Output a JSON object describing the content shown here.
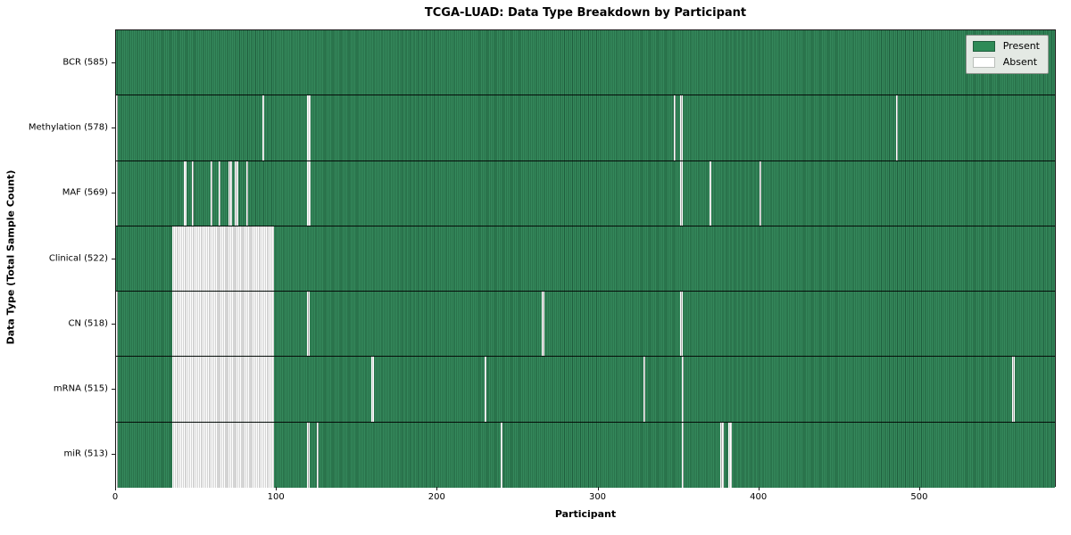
{
  "title": "TCGA-LUAD: Data Type Breakdown by Participant",
  "chart_data": {
    "type": "heatmap",
    "title": "TCGA-LUAD: Data Type Breakdown by Participant",
    "xlabel": "Participant",
    "ylabel": "Data Type (Total Sample Count)",
    "x_range": [
      0,
      585
    ],
    "x_ticks": [
      0,
      100,
      200,
      300,
      400,
      500
    ],
    "grid": false,
    "legend_position": "upper right",
    "legend_entries": [
      "Present",
      "Absent"
    ],
    "colors": {
      "present_fill": "#35895c",
      "present_edge": "#1f5e3d",
      "absent_fill": "#ffffff",
      "absent_edge": "#a8a8a8",
      "legend_present_swatch": "#2e8b57",
      "row_divider": "#000000"
    },
    "rows": [
      {
        "label": "BCR",
        "total": 585,
        "tick_label": "BCR (585)",
        "absent_ranges": []
      },
      {
        "label": "Methylation",
        "total": 578,
        "tick_label": "Methylation (578)",
        "absent_ranges": [
          [
            0,
            0
          ],
          [
            91,
            91
          ],
          [
            119,
            120
          ],
          [
            347,
            347
          ],
          [
            351,
            351
          ],
          [
            485,
            485
          ]
        ]
      },
      {
        "label": "MAF",
        "total": 569,
        "tick_label": "MAF (569)",
        "absent_ranges": [
          [
            0,
            0
          ],
          [
            42,
            43
          ],
          [
            47,
            47
          ],
          [
            59,
            59
          ],
          [
            64,
            64
          ],
          [
            70,
            71
          ],
          [
            74,
            75
          ],
          [
            81,
            81
          ],
          [
            119,
            120
          ],
          [
            351,
            351
          ],
          [
            369,
            369
          ],
          [
            400,
            400
          ]
        ]
      },
      {
        "label": "Clinical",
        "total": 522,
        "tick_label": "Clinical (522)",
        "absent_ranges": [
          [
            35,
            97
          ]
        ]
      },
      {
        "label": "CN",
        "total": 518,
        "tick_label": "CN (518)",
        "absent_ranges": [
          [
            0,
            0
          ],
          [
            35,
            97
          ],
          [
            119,
            119
          ],
          [
            265,
            265
          ],
          [
            351,
            351
          ]
        ]
      },
      {
        "label": "mRNA",
        "total": 515,
        "tick_label": "mRNA (515)",
        "absent_ranges": [
          [
            0,
            0
          ],
          [
            35,
            97
          ],
          [
            159,
            159
          ],
          [
            229,
            229
          ],
          [
            328,
            328
          ],
          [
            352,
            352
          ],
          [
            557,
            558
          ]
        ]
      },
      {
        "label": "miR",
        "total": 513,
        "tick_label": "miR (513)",
        "absent_ranges": [
          [
            0,
            0
          ],
          [
            35,
            97
          ],
          [
            119,
            119
          ],
          [
            125,
            125
          ],
          [
            239,
            239
          ],
          [
            352,
            352
          ],
          [
            376,
            377
          ],
          [
            381,
            382
          ]
        ]
      }
    ]
  }
}
